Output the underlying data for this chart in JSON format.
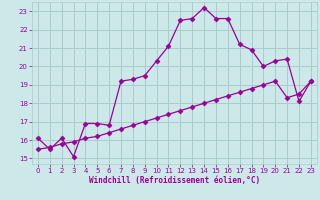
{
  "xlabel": "Windchill (Refroidissement éolien,°C)",
  "xlim": [
    -0.5,
    23.5
  ],
  "ylim": [
    14.7,
    23.5
  ],
  "yticks": [
    15,
    16,
    17,
    18,
    19,
    20,
    21,
    22,
    23
  ],
  "xticks": [
    0,
    1,
    2,
    3,
    4,
    5,
    6,
    7,
    8,
    9,
    10,
    11,
    12,
    13,
    14,
    15,
    16,
    17,
    18,
    19,
    20,
    21,
    22,
    23
  ],
  "line1_x": [
    0,
    1,
    2,
    3,
    4,
    5,
    6,
    7,
    8,
    9,
    10,
    11,
    12,
    13,
    14,
    15,
    16,
    17,
    18,
    19,
    20,
    21,
    22,
    23
  ],
  "line1_y": [
    16.1,
    15.5,
    16.1,
    15.1,
    16.9,
    16.9,
    16.8,
    19.2,
    19.3,
    19.5,
    20.3,
    21.1,
    22.5,
    22.6,
    23.2,
    22.6,
    22.6,
    21.2,
    20.9,
    20.0,
    20.3,
    20.4,
    18.1,
    19.2
  ],
  "line2_x": [
    0,
    1,
    2,
    3,
    4,
    5,
    6,
    7,
    8,
    9,
    10,
    11,
    12,
    13,
    14,
    15,
    16,
    17,
    18,
    19,
    20,
    21,
    22,
    23
  ],
  "line2_y": [
    15.5,
    15.6,
    15.8,
    15.9,
    16.1,
    16.2,
    16.4,
    16.6,
    16.8,
    17.0,
    17.2,
    17.4,
    17.6,
    17.8,
    18.0,
    18.2,
    18.4,
    18.6,
    18.8,
    19.0,
    19.2,
    18.3,
    18.5,
    19.2
  ],
  "line_color": "#990099",
  "bg_color": "#cce8e8",
  "grid_color": "#aacccc",
  "marker": "D",
  "markersize": 2.5,
  "linewidth": 0.9
}
